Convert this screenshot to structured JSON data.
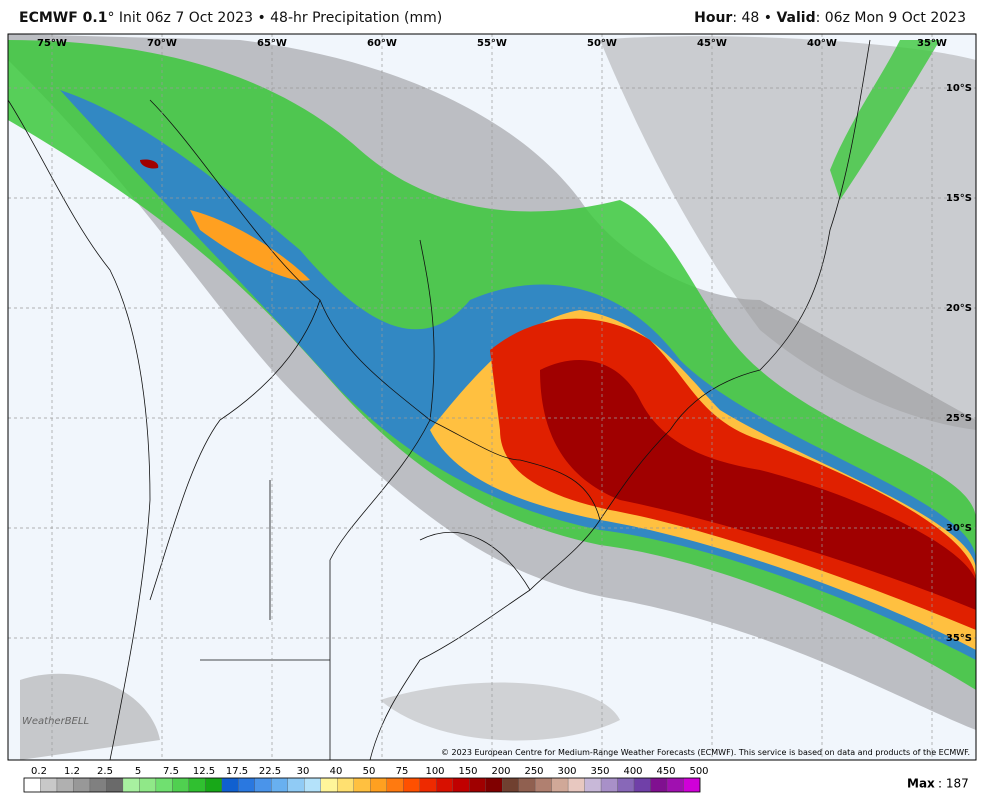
{
  "header": {
    "model": "ECMWF 0.1",
    "init": "° Init 06z 7 Oct 2023 • 48-hr Precipitation (mm)",
    "hour_label": "Hour",
    "hour_value": ": 48 • ",
    "valid_label": "Valid",
    "valid_value": ": 06z Mon 9 Oct 2023"
  },
  "map": {
    "lon_labels": [
      "75°W",
      "70°W",
      "65°W",
      "60°W",
      "55°W",
      "50°W",
      "45°W",
      "40°W",
      "35°W"
    ],
    "lat_labels": [
      "10°S",
      "15°S",
      "20°S",
      "25°S",
      "30°S",
      "35°S"
    ],
    "watermark": "WeatherBELL",
    "credit": "© 2023 European Centre for Medium-Range Weather Forecasts (ECMWF). This service is based on data and products of the ECMWF."
  },
  "colorbar": {
    "labels": [
      0.2,
      1.2,
      2.5,
      5,
      7.5,
      12.5,
      17.5,
      22.5,
      30,
      40,
      50,
      75,
      100,
      150,
      200,
      250,
      300,
      350,
      400,
      450,
      500
    ],
    "colors": [
      "#ffffff",
      "#c8c8c8",
      "#b0b0b0",
      "#989898",
      "#808080",
      "#6a6a6a",
      "#a8f0a0",
      "#90e888",
      "#70e070",
      "#50d050",
      "#30c030",
      "#18a818",
      "#1060d0",
      "#2a78e0",
      "#4a94ea",
      "#68b0f0",
      "#90cbf5",
      "#b4e2fa",
      "#fff59a",
      "#ffe070",
      "#ffc040",
      "#ffa020",
      "#ff7a10",
      "#ff5000",
      "#ee2a00",
      "#d81000",
      "#c00000",
      "#a00000",
      "#800000",
      "#704030",
      "#906050",
      "#b08070",
      "#d0a898",
      "#e8c8c0",
      "#c8b8d8",
      "#a890c8",
      "#8868b8",
      "#7040a8",
      "#801090",
      "#a010b0",
      "#d000d8"
    ],
    "max_label": "Max",
    "max_value": ": 187"
  }
}
